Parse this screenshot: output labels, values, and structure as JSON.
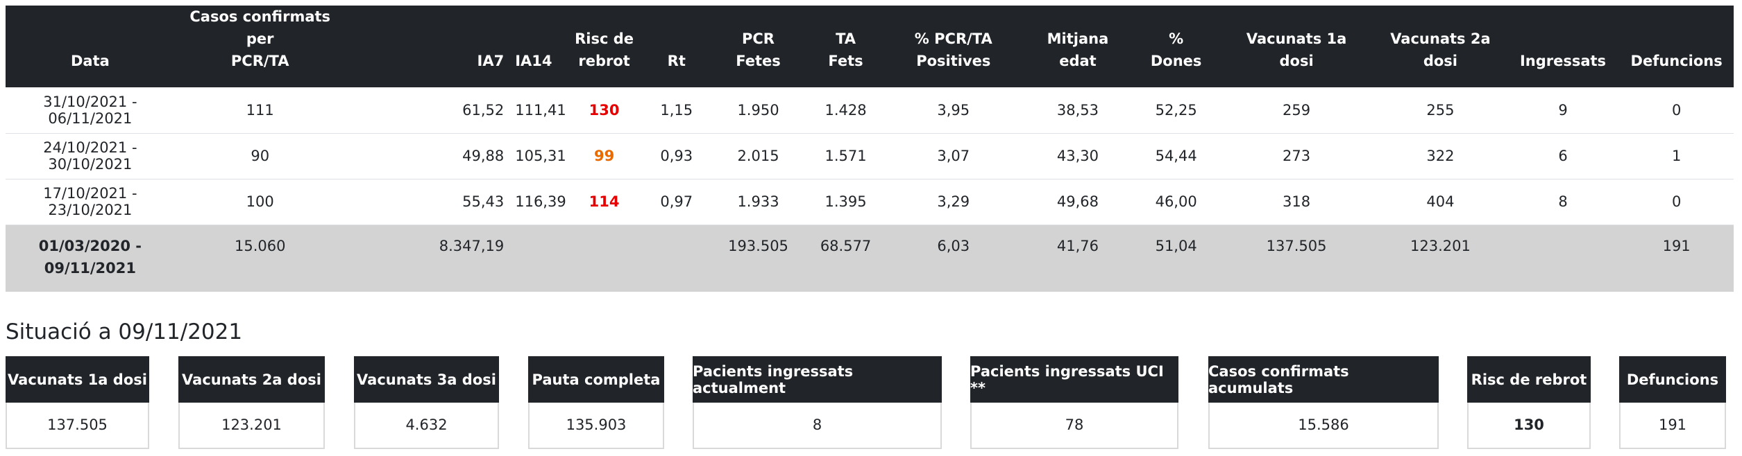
{
  "table": {
    "headers": {
      "date": "Data",
      "cases": [
        "Casos confirmats per",
        "PCR/TA"
      ],
      "ia7": "IA7",
      "ia14": "IA14",
      "risk": [
        "Risc de",
        "rebrot"
      ],
      "rt": "Rt",
      "pcr": [
        "PCR",
        "Fetes"
      ],
      "ta": [
        "TA",
        "Fets"
      ],
      "positives": [
        "% PCR/TA",
        "Positives"
      ],
      "age": [
        "Mitjana",
        "edat"
      ],
      "women": [
        "%",
        "Dones"
      ],
      "vacc1": [
        "Vacunats 1a",
        "dosi"
      ],
      "vacc2": [
        "Vacunats 2a",
        "dosi"
      ],
      "admitted": "Ingressats",
      "deaths": "Defuncions"
    },
    "rows": [
      {
        "period": "31/10/2021 - 06/11/2021",
        "cases": "111",
        "ia7": "61,52",
        "ia14": "111,41",
        "risk": "130",
        "risk_level": "red",
        "rt": "1,15",
        "pcr": "1.950",
        "ta": "1.428",
        "positives": "3,95",
        "age": "38,53",
        "women": "52,25",
        "vacc1": "259",
        "vacc2": "255",
        "admitted": "9",
        "deaths": "0"
      },
      {
        "period": "24/10/2021 - 30/10/2021",
        "cases": "90",
        "ia7": "49,88",
        "ia14": "105,31",
        "risk": "99",
        "risk_level": "orange",
        "rt": "0,93",
        "pcr": "2.015",
        "ta": "1.571",
        "positives": "3,07",
        "age": "43,30",
        "women": "54,44",
        "vacc1": "273",
        "vacc2": "322",
        "admitted": "6",
        "deaths": "1"
      },
      {
        "period": "17/10/2021 - 23/10/2021",
        "cases": "100",
        "ia7": "55,43",
        "ia14": "116,39",
        "risk": "114",
        "risk_level": "red",
        "rt": "0,97",
        "pcr": "1.933",
        "ta": "1.395",
        "positives": "3,29",
        "age": "49,68",
        "women": "46,00",
        "vacc1": "318",
        "vacc2": "404",
        "admitted": "8",
        "deaths": "0"
      }
    ],
    "total": {
      "period": [
        "01/03/2020 -",
        "09/11/2021"
      ],
      "cases": "15.060",
      "ia7": "8.347,19",
      "ia14": "",
      "risk": "",
      "rt": "",
      "pcr": "193.505",
      "ta": "68.577",
      "positives": "6,03",
      "age": "41,76",
      "women": "51,04",
      "vacc1": "137.505",
      "vacc2": "123.201",
      "admitted": "",
      "deaths": "191"
    }
  },
  "situation": {
    "title": "Situació a 09/11/2021",
    "cards": [
      {
        "label": "Vacunats 1a dosi",
        "value": "137.505"
      },
      {
        "label": "Vacunats 2a dosi",
        "value": "123.201"
      },
      {
        "label": "Vacunats 3a dosi",
        "value": "4.632"
      },
      {
        "label": "Pauta completa",
        "value": "135.903"
      },
      {
        "label": "Pacients ingressats actualment",
        "value": "8"
      },
      {
        "label": "Pacients ingressats UCI **",
        "value": "78"
      },
      {
        "label": "Casos confirmats acumulats",
        "value": "15.586"
      },
      {
        "label": "Risc de rebrot",
        "value": "130"
      },
      {
        "label": "Defuncions",
        "value": "191"
      }
    ]
  },
  "colors": {
    "header_bg": "#212529",
    "total_bg": "#d3d3d3",
    "risk_red": "#e60000",
    "risk_orange": "#e86a00"
  }
}
